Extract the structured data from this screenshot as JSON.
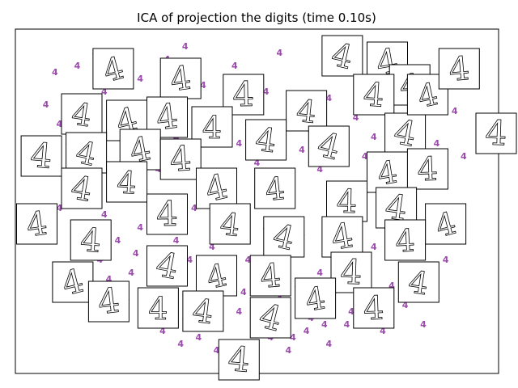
{
  "chart_data": {
    "type": "scatter",
    "title": "ICA of projection the digits (time 0.10s)",
    "xlabel": "",
    "ylabel": "",
    "xlim": [
      0,
      1
    ],
    "ylim": [
      0,
      1
    ],
    "axis_ticks": false,
    "grid": false,
    "marker_label": "4",
    "marker_color": "#9a4aaa",
    "points": [
      [
        0.03,
        0.78
      ],
      [
        0.06,
        0.72
      ],
      [
        0.08,
        0.66
      ],
      [
        0.1,
        0.8
      ],
      [
        0.12,
        0.74
      ],
      [
        0.14,
        0.6
      ],
      [
        0.16,
        0.82
      ],
      [
        0.18,
        0.7
      ],
      [
        0.2,
        0.76
      ],
      [
        0.22,
        0.64
      ],
      [
        0.24,
        0.86
      ],
      [
        0.26,
        0.72
      ],
      [
        0.28,
        0.58
      ],
      [
        0.3,
        0.8
      ],
      [
        0.32,
        0.68
      ],
      [
        0.34,
        0.74
      ],
      [
        0.36,
        0.62
      ],
      [
        0.38,
        0.84
      ],
      [
        0.4,
        0.7
      ],
      [
        0.42,
        0.56
      ],
      [
        0.44,
        0.78
      ],
      [
        0.46,
        0.66
      ],
      [
        0.48,
        0.72
      ],
      [
        0.5,
        0.6
      ],
      [
        0.52,
        0.82
      ],
      [
        0.54,
        0.68
      ],
      [
        0.56,
        0.54
      ],
      [
        0.58,
        0.76
      ],
      [
        0.6,
        0.64
      ],
      [
        0.62,
        0.7
      ],
      [
        0.64,
        0.58
      ],
      [
        0.66,
        0.8
      ],
      [
        0.68,
        0.66
      ],
      [
        0.7,
        0.52
      ],
      [
        0.72,
        0.74
      ],
      [
        0.74,
        0.62
      ],
      [
        0.76,
        0.68
      ],
      [
        0.78,
        0.56
      ],
      [
        0.8,
        0.78
      ],
      [
        0.82,
        0.64
      ],
      [
        0.84,
        0.5
      ],
      [
        0.86,
        0.72
      ],
      [
        0.88,
        0.6
      ],
      [
        0.9,
        0.66
      ],
      [
        0.92,
        0.54
      ],
      [
        0.94,
        0.76
      ],
      [
        0.96,
        0.62
      ],
      [
        0.12,
        0.5
      ],
      [
        0.16,
        0.44
      ],
      [
        0.2,
        0.52
      ],
      [
        0.24,
        0.4
      ],
      [
        0.28,
        0.48
      ],
      [
        0.32,
        0.36
      ],
      [
        0.36,
        0.46
      ],
      [
        0.4,
        0.34
      ],
      [
        0.44,
        0.42
      ],
      [
        0.48,
        0.3
      ],
      [
        0.52,
        0.4
      ],
      [
        0.56,
        0.28
      ],
      [
        0.6,
        0.38
      ],
      [
        0.64,
        0.26
      ],
      [
        0.68,
        0.36
      ],
      [
        0.72,
        0.24
      ],
      [
        0.76,
        0.34
      ],
      [
        0.8,
        0.22
      ],
      [
        0.84,
        0.32
      ],
      [
        0.88,
        0.2
      ],
      [
        0.92,
        0.3
      ],
      [
        0.22,
        0.26
      ],
      [
        0.26,
        0.2
      ],
      [
        0.3,
        0.16
      ],
      [
        0.34,
        0.12
      ],
      [
        0.38,
        0.18
      ],
      [
        0.42,
        0.1
      ],
      [
        0.46,
        0.14
      ],
      [
        0.5,
        0.08
      ],
      [
        0.54,
        0.16
      ],
      [
        0.58,
        0.06
      ],
      [
        0.62,
        0.12
      ],
      [
        0.66,
        0.04
      ],
      [
        0.7,
        0.1
      ],
      [
        0.74,
        0.14
      ],
      [
        0.78,
        0.08
      ],
      [
        0.15,
        0.3
      ],
      [
        0.19,
        0.36
      ],
      [
        0.23,
        0.32
      ],
      [
        0.27,
        0.28
      ],
      [
        0.31,
        0.24
      ],
      [
        0.35,
        0.3
      ],
      [
        0.39,
        0.22
      ],
      [
        0.43,
        0.26
      ],
      [
        0.47,
        0.2
      ],
      [
        0.51,
        0.24
      ],
      [
        0.55,
        0.18
      ],
      [
        0.59,
        0.22
      ],
      [
        0.63,
        0.16
      ],
      [
        0.67,
        0.2
      ],
      [
        0.71,
        0.14
      ],
      [
        0.75,
        0.18
      ],
      [
        0.79,
        0.12
      ],
      [
        0.83,
        0.16
      ],
      [
        0.87,
        0.1
      ],
      [
        0.1,
        0.9
      ],
      [
        0.14,
        0.94
      ],
      [
        0.3,
        0.92
      ],
      [
        0.34,
        0.96
      ],
      [
        0.45,
        0.9
      ],
      [
        0.55,
        0.94
      ],
      [
        0.65,
        0.88
      ],
      [
        0.7,
        0.96
      ],
      [
        0.75,
        0.92
      ],
      [
        0.85,
        0.88
      ],
      [
        0.9,
        0.84
      ],
      [
        0.05,
        0.88
      ],
      [
        0.08,
        0.56
      ],
      [
        0.04,
        0.62
      ],
      [
        0.06,
        0.46
      ],
      [
        0.1,
        0.4
      ],
      [
        0.13,
        0.34
      ],
      [
        0.17,
        0.24
      ],
      [
        0.21,
        0.18
      ],
      [
        0.25,
        0.14
      ],
      [
        0.29,
        0.08
      ],
      [
        0.33,
        0.04
      ],
      [
        0.37,
        0.06
      ],
      [
        0.41,
        0.02
      ],
      [
        0.45,
        0.04
      ],
      [
        0.49,
        0.02
      ],
      [
        0.53,
        0.06
      ],
      [
        0.57,
        0.02
      ],
      [
        0.61,
        0.08
      ],
      [
        0.65,
        0.1
      ]
    ],
    "thumbnails": [
      [
        0.18,
        0.9
      ],
      [
        0.33,
        0.87
      ],
      [
        0.47,
        0.82
      ],
      [
        0.61,
        0.77
      ],
      [
        0.69,
        0.94
      ],
      [
        0.79,
        0.92
      ],
      [
        0.84,
        0.85
      ],
      [
        0.76,
        0.82
      ],
      [
        0.83,
        0.7
      ],
      [
        0.88,
        0.82
      ],
      [
        0.95,
        0.9
      ],
      [
        1.04,
        0.7
      ],
      [
        0.11,
        0.76
      ],
      [
        0.21,
        0.74
      ],
      [
        0.3,
        0.75
      ],
      [
        0.4,
        0.72
      ],
      [
        0.52,
        0.68
      ],
      [
        0.66,
        0.66
      ],
      [
        0.79,
        0.58
      ],
      [
        0.88,
        0.59
      ],
      [
        0.02,
        0.63
      ],
      [
        0.12,
        0.64
      ],
      [
        0.24,
        0.65
      ],
      [
        0.33,
        0.62
      ],
      [
        0.21,
        0.55
      ],
      [
        0.11,
        0.53
      ],
      [
        0.41,
        0.53
      ],
      [
        0.54,
        0.53
      ],
      [
        0.7,
        0.49
      ],
      [
        0.81,
        0.47
      ],
      [
        0.92,
        0.42
      ],
      [
        0.01,
        0.42
      ],
      [
        0.3,
        0.45
      ],
      [
        0.44,
        0.42
      ],
      [
        0.56,
        0.38
      ],
      [
        0.69,
        0.38
      ],
      [
        0.83,
        0.37
      ],
      [
        0.13,
        0.37
      ],
      [
        0.3,
        0.29
      ],
      [
        0.41,
        0.26
      ],
      [
        0.53,
        0.26
      ],
      [
        0.71,
        0.27
      ],
      [
        0.86,
        0.24
      ],
      [
        0.09,
        0.24
      ],
      [
        0.17,
        0.18
      ],
      [
        0.28,
        0.16
      ],
      [
        0.38,
        0.15
      ],
      [
        0.53,
        0.13
      ],
      [
        0.63,
        0.19
      ],
      [
        0.76,
        0.16
      ],
      [
        0.46,
        0.0
      ]
    ]
  }
}
